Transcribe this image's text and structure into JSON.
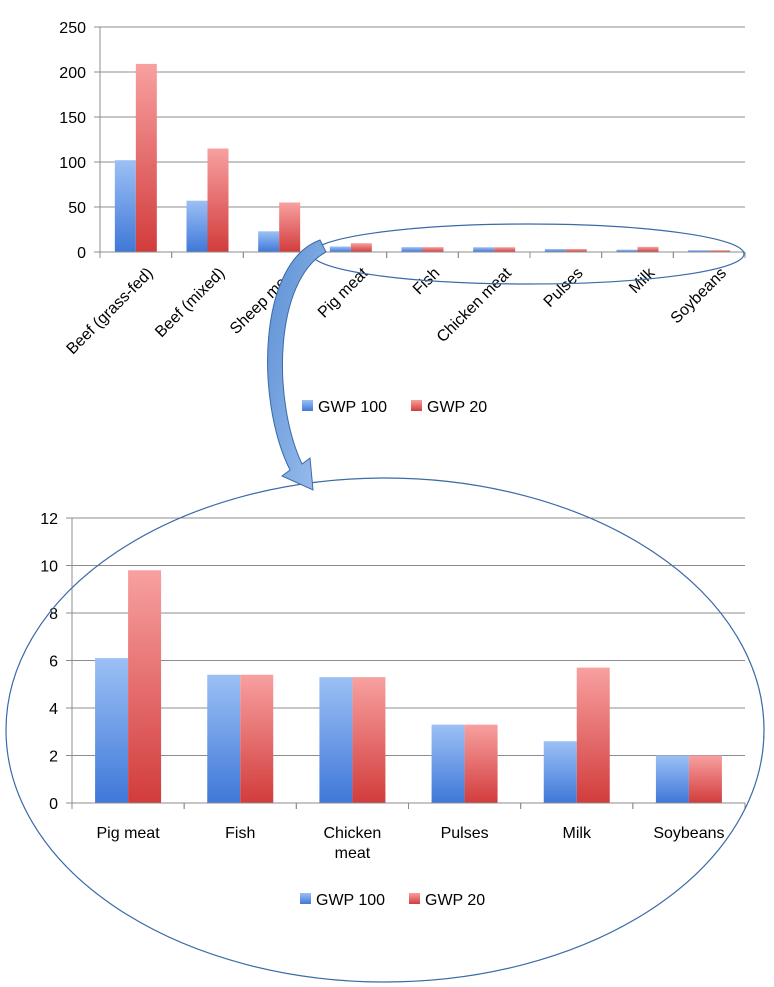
{
  "colors": {
    "gwp100": "#4a86e8",
    "gwp20": "#e04848",
    "grid": "#8c8c8c",
    "callout": "#3a6aa8"
  },
  "chart_data": [
    {
      "type": "bar",
      "categories": [
        "Beef (grass-fed)",
        "Beef (mixed)",
        "Sheep meat",
        "Pig meat",
        "Fish",
        "Chicken meat",
        "Pulses",
        "Milk",
        "Soybeans"
      ],
      "series": [
        {
          "name": "GWP 100",
          "values": [
            102,
            57,
            23,
            6.1,
            5.4,
            5.3,
            3.3,
            2.6,
            2.0
          ]
        },
        {
          "name": "GWP 20",
          "values": [
            209,
            115,
            55,
            9.8,
            5.4,
            5.3,
            3.3,
            5.7,
            2.0
          ]
        }
      ],
      "yticks": [
        "0",
        "50",
        "100",
        "150",
        "200",
        "250"
      ],
      "ylim": [
        0,
        250
      ],
      "legend": "bottom",
      "grid": true
    },
    {
      "type": "bar",
      "categories": [
        "Pig meat",
        "Fish",
        "Chicken meat",
        "Pulses",
        "Milk",
        "Soybeans"
      ],
      "series": [
        {
          "name": "GWP 100",
          "values": [
            6.1,
            5.4,
            5.3,
            3.3,
            2.6,
            2.0
          ]
        },
        {
          "name": "GWP 20",
          "values": [
            9.8,
            5.4,
            5.3,
            3.3,
            5.7,
            2.0
          ]
        }
      ],
      "yticks": [
        "0",
        "2",
        "4",
        "6",
        "8",
        "10",
        "12"
      ],
      "ylim": [
        0,
        12
      ],
      "legend": "bottom",
      "grid": true
    }
  ]
}
